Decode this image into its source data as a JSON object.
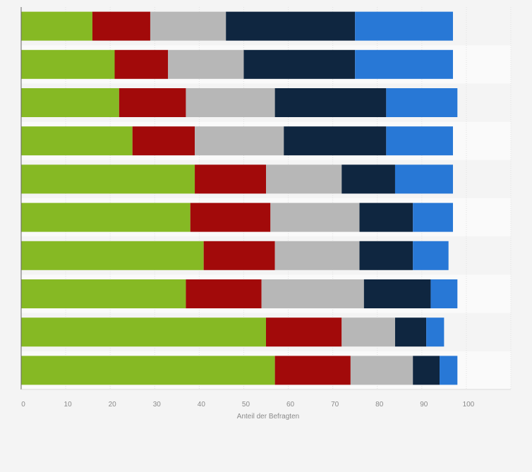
{
  "chart_data": {
    "type": "bar",
    "orientation": "horizontal",
    "stacked": true,
    "title": "",
    "xlabel": "Anteil der Befragten",
    "ylabel": "",
    "xlim": [
      0,
      110
    ],
    "xticks": [
      0,
      10,
      20,
      30,
      40,
      50,
      60,
      70,
      80,
      90,
      100
    ],
    "grid": true,
    "legend": "none",
    "categories": [
      "",
      "",
      "",
      "",
      "",
      "",
      "",
      "",
      "",
      ""
    ],
    "series": [
      {
        "color": "#86b924",
        "values": [
          16,
          21,
          22,
          25,
          39,
          38,
          41,
          37,
          55,
          57
        ]
      },
      {
        "color": "#a20a0a",
        "values": [
          13,
          12,
          15,
          14,
          16,
          18,
          16,
          17,
          17,
          17
        ]
      },
      {
        "color": "#b7b7b7",
        "values": [
          17,
          17,
          20,
          20,
          17,
          20,
          19,
          23,
          12,
          14
        ]
      },
      {
        "color": "#0f2640",
        "values": [
          29,
          25,
          25,
          23,
          12,
          12,
          12,
          15,
          7,
          6
        ]
      },
      {
        "color": "#2878d6",
        "values": [
          22,
          22,
          16,
          15,
          13,
          9,
          8,
          6,
          4,
          4
        ]
      }
    ]
  }
}
